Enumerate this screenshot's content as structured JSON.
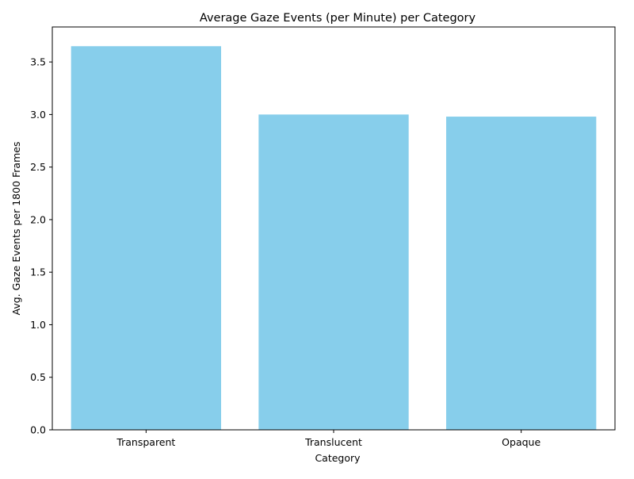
{
  "chart_data": {
    "type": "bar",
    "title": "Average Gaze Events (per Minute) per Category",
    "xlabel": "Category",
    "ylabel": "Avg. Gaze Events per 1800 Frames",
    "categories": [
      "Transparent",
      "Translucent",
      "Opaque"
    ],
    "values": [
      3.65,
      3.0,
      2.98
    ],
    "ylim": [
      0,
      3.833
    ],
    "yticks": [
      0.0,
      0.5,
      1.0,
      1.5,
      2.0,
      2.5,
      3.0,
      3.5
    ],
    "ytick_labels": [
      "0.0",
      "0.5",
      "1.0",
      "1.5",
      "2.0",
      "2.5",
      "3.0",
      "3.5"
    ],
    "bar_color": "#87ceeb",
    "grid": false,
    "legend": "none"
  }
}
